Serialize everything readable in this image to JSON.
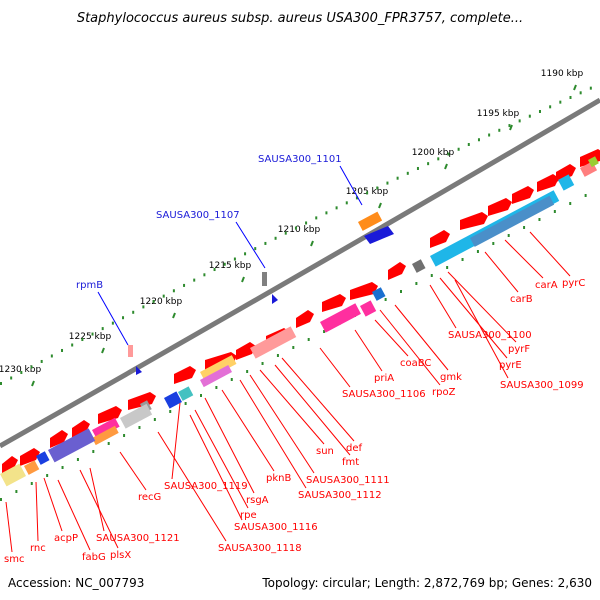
{
  "title": "Staphylococcus aureus subsp. aureus USA300_FPR3757, complete...",
  "footer": {
    "accession": "Accession: NC_007793",
    "summary": "Topology: circular; Length: 2,872,769 bp; Genes: 2,630"
  },
  "colors": {
    "backbone": "#7a7a7a",
    "tick": "#2e8b2e",
    "tick_label": "#000000",
    "forward_gene": "#ff0000",
    "reverse_gene": "#ff0000",
    "gene_label": "#ff0000",
    "feature_label": "#1a1ad8",
    "feature_marker": "#0000ff"
  },
  "scale_ticks": [
    {
      "label": "1190 kbp"
    },
    {
      "label": "1195 kbp"
    },
    {
      "label": "1200 kbp"
    },
    {
      "label": "1205 kbp"
    },
    {
      "label": "1210 kbp"
    },
    {
      "label": "1215 kbp"
    },
    {
      "label": "1220 kbp"
    },
    {
      "label": "1225 kbp"
    },
    {
      "label": "1230 kbp"
    }
  ],
  "features": [
    {
      "name": "SAUSA300_1101"
    },
    {
      "name": "SAUSA300_1107"
    },
    {
      "name": "rpmB"
    }
  ],
  "gene_labels": [
    {
      "name": "pyrC"
    },
    {
      "name": "carA"
    },
    {
      "name": "carB"
    },
    {
      "name": "SAUSA300_1100"
    },
    {
      "name": "pyrF"
    },
    {
      "name": "pyrE"
    },
    {
      "name": "SAUSA300_1099"
    },
    {
      "name": "coaBC"
    },
    {
      "name": "gmk"
    },
    {
      "name": "priA"
    },
    {
      "name": "rpoZ"
    },
    {
      "name": "SAUSA300_1106"
    },
    {
      "name": "def"
    },
    {
      "name": "fmt"
    },
    {
      "name": "sun"
    },
    {
      "name": "SAUSA300_1111"
    },
    {
      "name": "SAUSA300_1112"
    },
    {
      "name": "pknB"
    },
    {
      "name": "rsgA"
    },
    {
      "name": "SAUSA300_1119"
    },
    {
      "name": "rpe"
    },
    {
      "name": "SAUSA300_1116"
    },
    {
      "name": "recG"
    },
    {
      "name": "SAUSA300_1118"
    },
    {
      "name": "SAUSA300_1121"
    },
    {
      "name": "plsX"
    },
    {
      "name": "fabG"
    },
    {
      "name": "acpP"
    },
    {
      "name": "rnc"
    },
    {
      "name": "smc"
    }
  ]
}
